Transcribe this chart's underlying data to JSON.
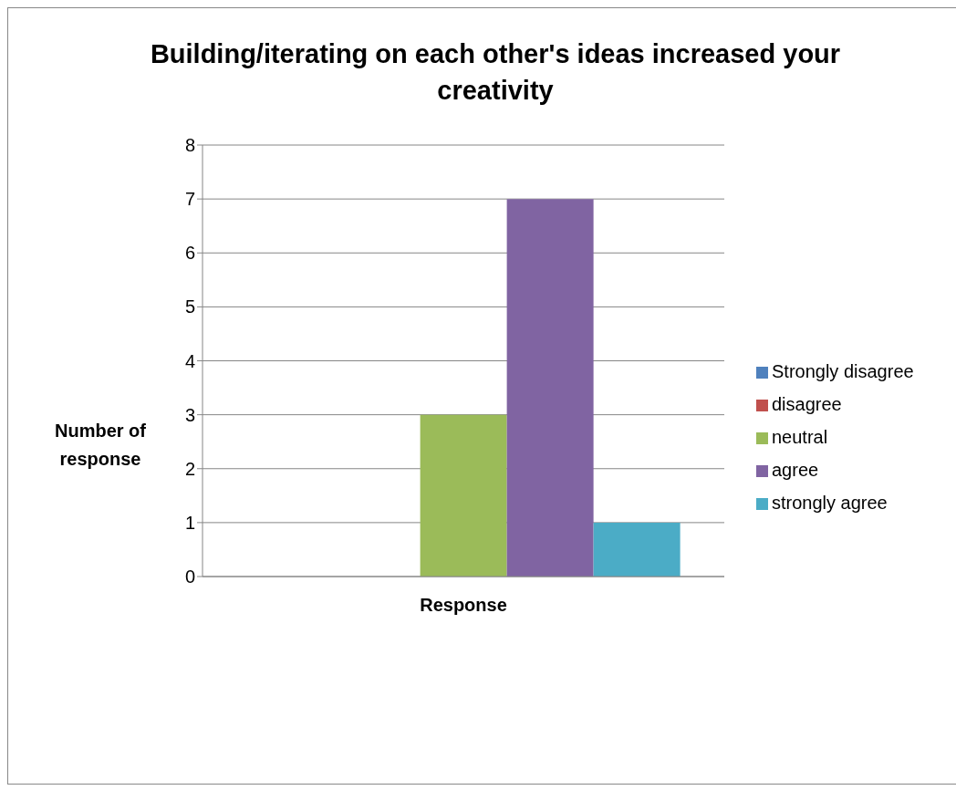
{
  "chart_data": {
    "type": "bar",
    "title": "Building/iterating on each other's ideas increased your creativity",
    "xlabel": "Response",
    "ylabel": "Number of response",
    "categories": [
      null
    ],
    "series": [
      {
        "name": "Strongly disagree",
        "color": "#4f81bd",
        "values": [
          0
        ]
      },
      {
        "name": "disagree",
        "color": "#c0504d",
        "values": [
          0
        ]
      },
      {
        "name": "neutral",
        "color": "#9bbb59",
        "values": [
          3
        ]
      },
      {
        "name": "agree",
        "color": "#8064a2",
        "values": [
          7
        ]
      },
      {
        "name": "strongly agree",
        "color": "#4bacc6",
        "values": [
          1
        ]
      }
    ],
    "ylim": [
      0,
      8
    ],
    "yticks": [
      0,
      1,
      2,
      3,
      4,
      5,
      6,
      7,
      8
    ],
    "grid": "y",
    "legend": "right"
  }
}
